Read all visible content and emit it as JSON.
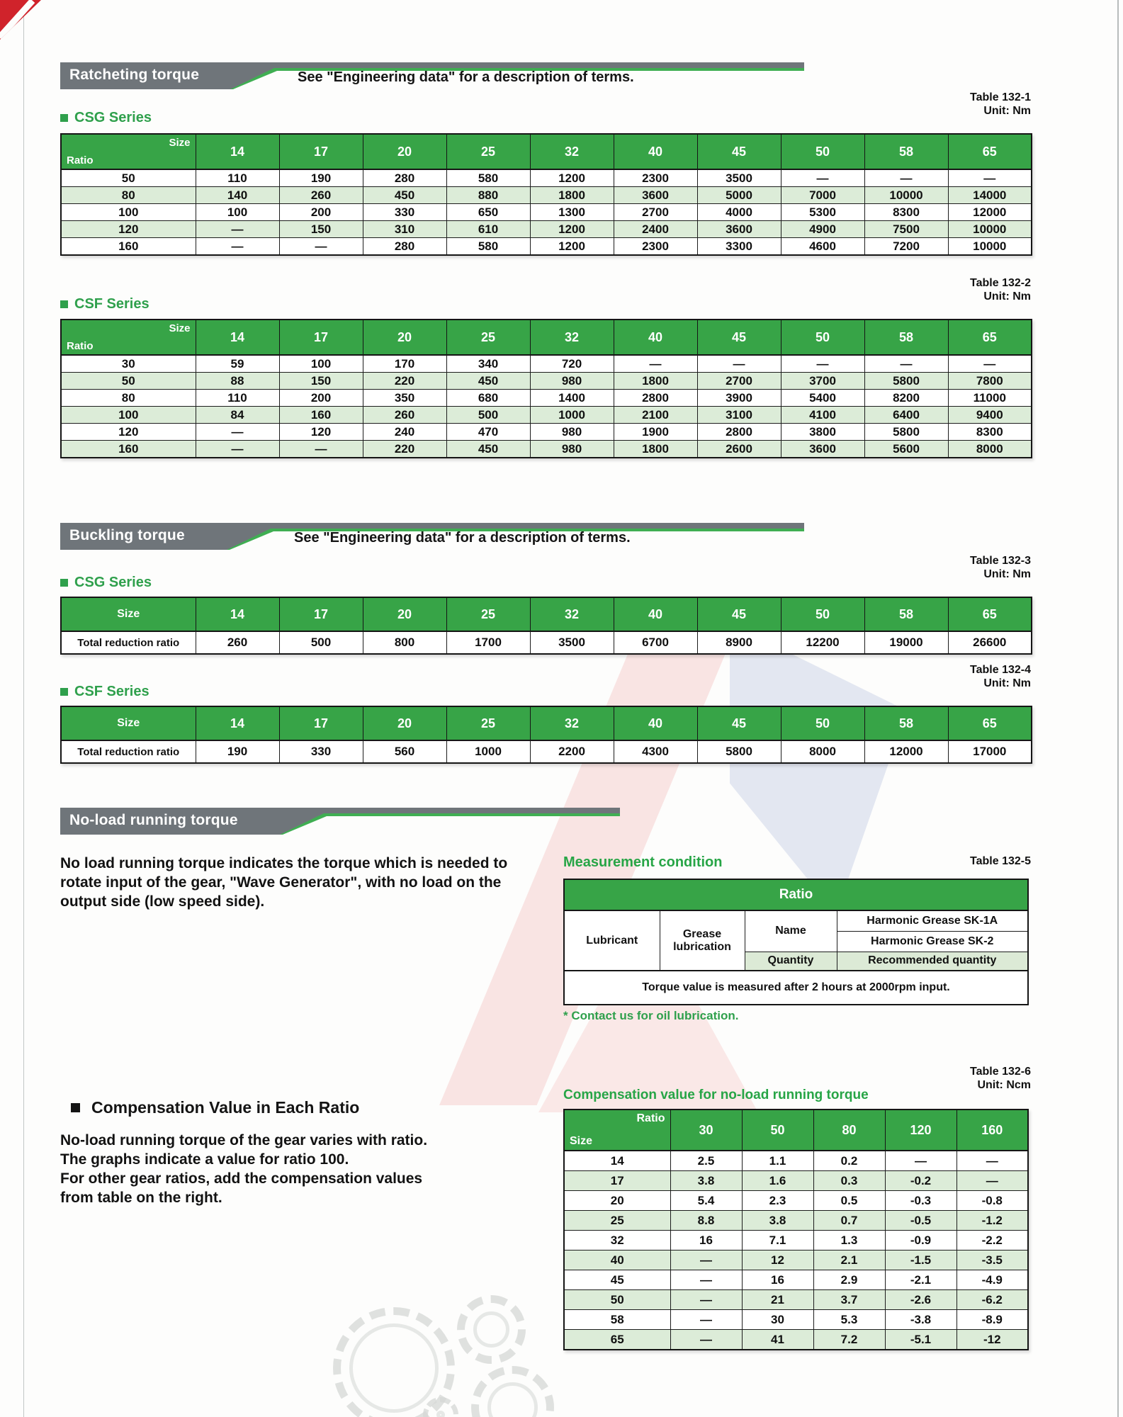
{
  "colors": {
    "accent_green": "#2fa04c",
    "header_green": "#37a447",
    "row_green": "#dcecd8",
    "banner_gray": "#6f757a",
    "corner_red": "#d0232b"
  },
  "ratcheting": {
    "banner_title": "Ratcheting torque",
    "banner_note": "See \"Engineering data\" for a description of terms.",
    "csg": {
      "label": "CSG Series",
      "table_no": "Table 132-1",
      "unit": "Unit: Nm",
      "corner_top": "Size",
      "corner_bottom": "Ratio",
      "columns": [
        "14",
        "17",
        "20",
        "25",
        "32",
        "40",
        "45",
        "50",
        "58",
        "65"
      ],
      "rows": [
        [
          "50",
          "110",
          "190",
          "280",
          "580",
          "1200",
          "2300",
          "3500",
          "—",
          "—",
          "—"
        ],
        [
          "80",
          "140",
          "260",
          "450",
          "880",
          "1800",
          "3600",
          "5000",
          "7000",
          "10000",
          "14000"
        ],
        [
          "100",
          "100",
          "200",
          "330",
          "650",
          "1300",
          "2700",
          "4000",
          "5300",
          "8300",
          "12000"
        ],
        [
          "120",
          "—",
          "150",
          "310",
          "610",
          "1200",
          "2400",
          "3600",
          "4900",
          "7500",
          "10000"
        ],
        [
          "160",
          "—",
          "—",
          "280",
          "580",
          "1200",
          "2300",
          "3300",
          "4600",
          "7200",
          "10000"
        ]
      ]
    },
    "csf": {
      "label": "CSF Series",
      "table_no": "Table 132-2",
      "unit": "Unit: Nm",
      "corner_top": "Size",
      "corner_bottom": "Ratio",
      "columns": [
        "14",
        "17",
        "20",
        "25",
        "32",
        "40",
        "45",
        "50",
        "58",
        "65"
      ],
      "rows": [
        [
          "30",
          "59",
          "100",
          "170",
          "340",
          "720",
          "—",
          "—",
          "—",
          "—",
          "—"
        ],
        [
          "50",
          "88",
          "150",
          "220",
          "450",
          "980",
          "1800",
          "2700",
          "3700",
          "5800",
          "7800"
        ],
        [
          "80",
          "110",
          "200",
          "350",
          "680",
          "1400",
          "2800",
          "3900",
          "5400",
          "8200",
          "11000"
        ],
        [
          "100",
          "84",
          "160",
          "260",
          "500",
          "1000",
          "2100",
          "3100",
          "4100",
          "6400",
          "9400"
        ],
        [
          "120",
          "—",
          "120",
          "240",
          "470",
          "980",
          "1900",
          "2800",
          "3800",
          "5800",
          "8300"
        ],
        [
          "160",
          "—",
          "—",
          "220",
          "450",
          "980",
          "1800",
          "2600",
          "3600",
          "5600",
          "8000"
        ]
      ]
    }
  },
  "buckling": {
    "banner_title": "Buckling torque",
    "banner_note": "See \"Engineering data\" for a description of terms.",
    "csg": {
      "label": "CSG Series",
      "table_no": "Table 132-3",
      "unit": "Unit: Nm",
      "size_label": "Size",
      "columns": [
        "14",
        "17",
        "20",
        "25",
        "32",
        "40",
        "45",
        "50",
        "58",
        "65"
      ],
      "rows": [
        [
          "Total reduction ratio",
          "260",
          "500",
          "800",
          "1700",
          "3500",
          "6700",
          "8900",
          "12200",
          "19000",
          "26600"
        ]
      ]
    },
    "csf": {
      "label": "CSF Series",
      "table_no": "Table 132-4",
      "unit": "Unit: Nm",
      "size_label": "Size",
      "columns": [
        "14",
        "17",
        "20",
        "25",
        "32",
        "40",
        "45",
        "50",
        "58",
        "65"
      ],
      "rows": [
        [
          "Total reduction ratio",
          "190",
          "330",
          "560",
          "1000",
          "2200",
          "4300",
          "5800",
          "8000",
          "12000",
          "17000"
        ]
      ]
    }
  },
  "noload": {
    "banner_title": "No-load running torque",
    "description": [
      "No load running torque indicates the torque which is needed to",
      "rotate input of the gear, \"Wave Generator\", with no load on the",
      "output side (low speed side)."
    ],
    "measurement": {
      "heading": "Measurement condition",
      "table_no": "Table 132-5",
      "ratio_header": "Ratio",
      "lubricant": "Lubricant",
      "grease": "Grease lubrication",
      "name": "Name",
      "quantity": "Quantity",
      "name_values": [
        "Harmonic Grease SK-1A",
        "Harmonic Grease SK-2"
      ],
      "quantity_value": "Recommended quantity",
      "note": "Torque value is measured after 2 hours at 2000rpm input.",
      "footnote": "* Contact us for oil lubrication."
    },
    "compensation": {
      "heading_left": "Compensation Value in Each Ratio",
      "description": [
        "No-load running torque of the gear varies with ratio.",
        "The graphs indicate a value for ratio 100.",
        "For other gear ratios, add the compensation values",
        "from table on the right."
      ],
      "heading": "Compensation value for no-load running torque",
      "table_no": "Table 132-6",
      "unit": "Unit: Ncm",
      "corner_top": "Ratio",
      "corner_bottom": "Size",
      "columns": [
        "30",
        "50",
        "80",
        "120",
        "160"
      ],
      "rows": [
        [
          "14",
          "2.5",
          "1.1",
          "0.2",
          "—",
          "—"
        ],
        [
          "17",
          "3.8",
          "1.6",
          "0.3",
          "-0.2",
          "—"
        ],
        [
          "20",
          "5.4",
          "2.3",
          "0.5",
          "-0.3",
          "-0.8"
        ],
        [
          "25",
          "8.8",
          "3.8",
          "0.7",
          "-0.5",
          "-1.2"
        ],
        [
          "32",
          "16",
          "7.1",
          "1.3",
          "-0.9",
          "-2.2"
        ],
        [
          "40",
          "—",
          "12",
          "2.1",
          "-1.5",
          "-3.5"
        ],
        [
          "45",
          "—",
          "16",
          "2.9",
          "-2.1",
          "-4.9"
        ],
        [
          "50",
          "—",
          "21",
          "3.7",
          "-2.6",
          "-6.2"
        ],
        [
          "58",
          "—",
          "30",
          "5.3",
          "-3.8",
          "-8.9"
        ],
        [
          "65",
          "—",
          "41",
          "7.2",
          "-5.1",
          "-12"
        ]
      ]
    }
  }
}
